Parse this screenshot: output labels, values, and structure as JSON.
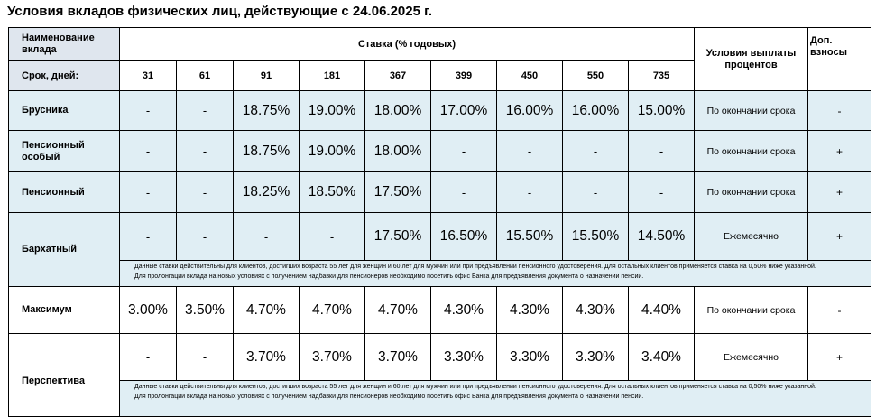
{
  "title": "Условия вкладов физических лиц, действующие с 24.06.2025 г.",
  "header": {
    "name_label": "Наименование вклада",
    "rate_label": "Ставка (% годовых)",
    "payout_label": "Условия выплаты процентов",
    "extra_label": "Доп. взносы",
    "term_label": "Срок, дней:",
    "terms": [
      "31",
      "61",
      "91",
      "181",
      "367",
      "399",
      "450",
      "550",
      "735"
    ]
  },
  "rows": [
    {
      "name": "Брусника",
      "rates": [
        "-",
        "-",
        "18.75%",
        "19.00%",
        "18.00%",
        "17.00%",
        "16.00%",
        "16.00%",
        "15.00%"
      ],
      "payout": "По окончании срока",
      "extra": "-"
    },
    {
      "name": "Пенсионный особый",
      "rates": [
        "-",
        "-",
        "18.75%",
        "19.00%",
        "18.00%",
        "-",
        "-",
        "-",
        "-"
      ],
      "payout": "По окончании срока",
      "extra": "+"
    },
    {
      "name": "Пенсионный",
      "rates": [
        "-",
        "-",
        "18.25%",
        "18.50%",
        "17.50%",
        "-",
        "-",
        "-",
        "-"
      ],
      "payout": "По окончании срока",
      "extra": "+"
    },
    {
      "name": "Бархатный",
      "rates": [
        "-",
        "-",
        "-",
        "-",
        "17.50%",
        "16.50%",
        "15.50%",
        "15.50%",
        "14.50%"
      ],
      "payout": "Ежемесячно",
      "extra": "+"
    },
    {
      "name": "Максимум",
      "rates": [
        "3.00%",
        "3.50%",
        "4.70%",
        "4.70%",
        "4.70%",
        "4.30%",
        "4.30%",
        "4.30%",
        "4.40%"
      ],
      "payout": "По окончании срока",
      "extra": "-"
    },
    {
      "name": "Перспектива",
      "rates": [
        "-",
        "-",
        "3.70%",
        "3.70%",
        "3.70%",
        "3.30%",
        "3.30%",
        "3.30%",
        "3.40%"
      ],
      "payout": "Ежемесячно",
      "extra": "+"
    }
  ],
  "notes": {
    "line1": "Данные ставки действительны для клиентов, достигших возраста 55 лет для женщин и 60 лет для мужчин или при предъявлении пенсионного удостоверения. Для остальных клиентов применяется ставка на 0,50% ниже указанной.",
    "line2": "Для пролонгации вклада на новых условиях с получением надбавки для пенсионеров необходимо посетить офис Банка для предъявления документа о назначении пенсии."
  }
}
